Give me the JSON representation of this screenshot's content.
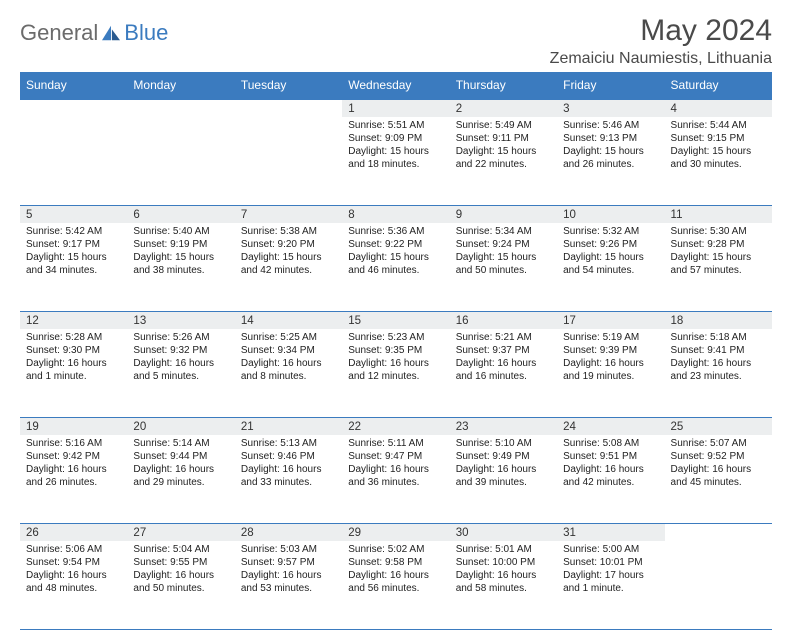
{
  "brand": {
    "part1": "General",
    "part2": "Blue"
  },
  "title": "May 2024",
  "location": "Zemaiciu Naumiestis, Lithuania",
  "colors": {
    "accent": "#3b7bbf",
    "shade": "#eceeef",
    "text": "#333333"
  },
  "weekdays": [
    "Sunday",
    "Monday",
    "Tuesday",
    "Wednesday",
    "Thursday",
    "Friday",
    "Saturday"
  ],
  "weeks": [
    [
      null,
      null,
      null,
      {
        "n": "1",
        "sr": "5:51 AM",
        "ss": "9:09 PM",
        "dl": "15 hours and 18 minutes."
      },
      {
        "n": "2",
        "sr": "5:49 AM",
        "ss": "9:11 PM",
        "dl": "15 hours and 22 minutes."
      },
      {
        "n": "3",
        "sr": "5:46 AM",
        "ss": "9:13 PM",
        "dl": "15 hours and 26 minutes."
      },
      {
        "n": "4",
        "sr": "5:44 AM",
        "ss": "9:15 PM",
        "dl": "15 hours and 30 minutes."
      }
    ],
    [
      {
        "n": "5",
        "sr": "5:42 AM",
        "ss": "9:17 PM",
        "dl": "15 hours and 34 minutes."
      },
      {
        "n": "6",
        "sr": "5:40 AM",
        "ss": "9:19 PM",
        "dl": "15 hours and 38 minutes."
      },
      {
        "n": "7",
        "sr": "5:38 AM",
        "ss": "9:20 PM",
        "dl": "15 hours and 42 minutes."
      },
      {
        "n": "8",
        "sr": "5:36 AM",
        "ss": "9:22 PM",
        "dl": "15 hours and 46 minutes."
      },
      {
        "n": "9",
        "sr": "5:34 AM",
        "ss": "9:24 PM",
        "dl": "15 hours and 50 minutes."
      },
      {
        "n": "10",
        "sr": "5:32 AM",
        "ss": "9:26 PM",
        "dl": "15 hours and 54 minutes."
      },
      {
        "n": "11",
        "sr": "5:30 AM",
        "ss": "9:28 PM",
        "dl": "15 hours and 57 minutes."
      }
    ],
    [
      {
        "n": "12",
        "sr": "5:28 AM",
        "ss": "9:30 PM",
        "dl": "16 hours and 1 minute."
      },
      {
        "n": "13",
        "sr": "5:26 AM",
        "ss": "9:32 PM",
        "dl": "16 hours and 5 minutes."
      },
      {
        "n": "14",
        "sr": "5:25 AM",
        "ss": "9:34 PM",
        "dl": "16 hours and 8 minutes."
      },
      {
        "n": "15",
        "sr": "5:23 AM",
        "ss": "9:35 PM",
        "dl": "16 hours and 12 minutes."
      },
      {
        "n": "16",
        "sr": "5:21 AM",
        "ss": "9:37 PM",
        "dl": "16 hours and 16 minutes."
      },
      {
        "n": "17",
        "sr": "5:19 AM",
        "ss": "9:39 PM",
        "dl": "16 hours and 19 minutes."
      },
      {
        "n": "18",
        "sr": "5:18 AM",
        "ss": "9:41 PM",
        "dl": "16 hours and 23 minutes."
      }
    ],
    [
      {
        "n": "19",
        "sr": "5:16 AM",
        "ss": "9:42 PM",
        "dl": "16 hours and 26 minutes."
      },
      {
        "n": "20",
        "sr": "5:14 AM",
        "ss": "9:44 PM",
        "dl": "16 hours and 29 minutes."
      },
      {
        "n": "21",
        "sr": "5:13 AM",
        "ss": "9:46 PM",
        "dl": "16 hours and 33 minutes."
      },
      {
        "n": "22",
        "sr": "5:11 AM",
        "ss": "9:47 PM",
        "dl": "16 hours and 36 minutes."
      },
      {
        "n": "23",
        "sr": "5:10 AM",
        "ss": "9:49 PM",
        "dl": "16 hours and 39 minutes."
      },
      {
        "n": "24",
        "sr": "5:08 AM",
        "ss": "9:51 PM",
        "dl": "16 hours and 42 minutes."
      },
      {
        "n": "25",
        "sr": "5:07 AM",
        "ss": "9:52 PM",
        "dl": "16 hours and 45 minutes."
      }
    ],
    [
      {
        "n": "26",
        "sr": "5:06 AM",
        "ss": "9:54 PM",
        "dl": "16 hours and 48 minutes."
      },
      {
        "n": "27",
        "sr": "5:04 AM",
        "ss": "9:55 PM",
        "dl": "16 hours and 50 minutes."
      },
      {
        "n": "28",
        "sr": "5:03 AM",
        "ss": "9:57 PM",
        "dl": "16 hours and 53 minutes."
      },
      {
        "n": "29",
        "sr": "5:02 AM",
        "ss": "9:58 PM",
        "dl": "16 hours and 56 minutes."
      },
      {
        "n": "30",
        "sr": "5:01 AM",
        "ss": "10:00 PM",
        "dl": "16 hours and 58 minutes."
      },
      {
        "n": "31",
        "sr": "5:00 AM",
        "ss": "10:01 PM",
        "dl": "17 hours and 1 minute."
      },
      null
    ]
  ],
  "labels": {
    "sunrise": "Sunrise:",
    "sunset": "Sunset:",
    "daylight": "Daylight:"
  }
}
